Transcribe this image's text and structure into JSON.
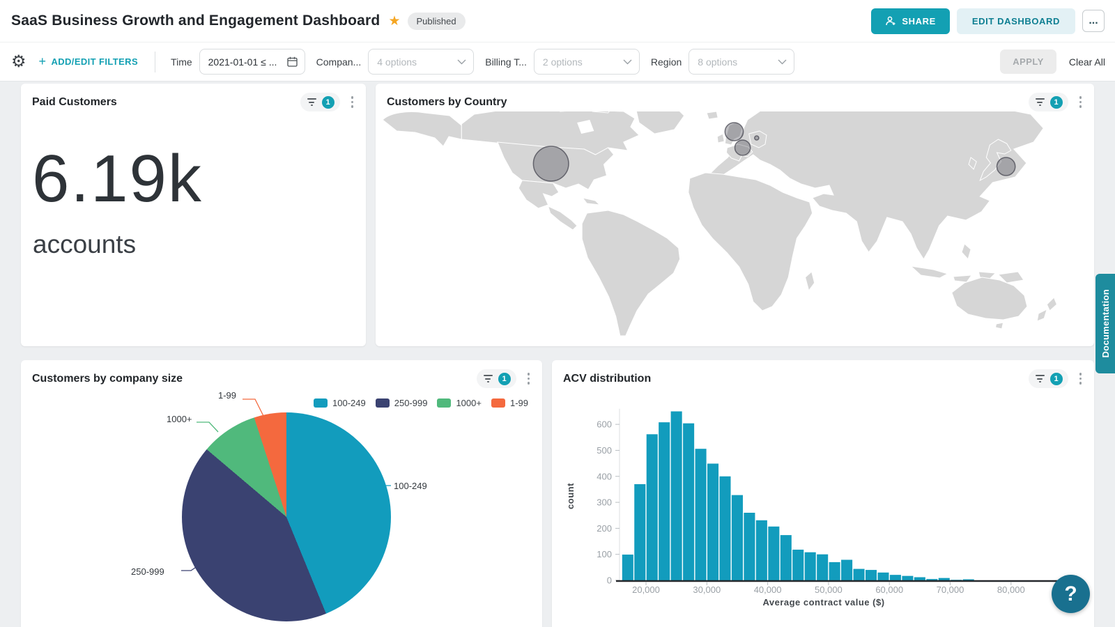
{
  "header": {
    "title": "SaaS Business Growth and Engagement Dashboard",
    "published_badge": "Published",
    "share_label": "SHARE",
    "edit_label": "EDIT DASHBOARD",
    "more_label": "..."
  },
  "filter_bar": {
    "add_edit_label": "ADD/EDIT FILTERS",
    "filters": [
      {
        "label": "Time",
        "value": "2021-01-01 ≤ ..."
      },
      {
        "label": "Compan...",
        "value": "4 options"
      },
      {
        "label": "Billing T...",
        "value": "2 options"
      },
      {
        "label": "Region",
        "value": "8 options"
      }
    ],
    "apply_label": "APPLY",
    "clear_all_label": "Clear All"
  },
  "widgets": {
    "paid_customers": {
      "title": "Paid Customers",
      "filter_count": "1",
      "value": "6.19k",
      "unit": "accounts"
    },
    "customers_by_country": {
      "title": "Customers by Country",
      "filter_count": "1"
    },
    "company_size": {
      "title": "Customers by company size",
      "filter_count": "1"
    },
    "acv": {
      "title": "ACV distribution",
      "filter_count": "1"
    }
  },
  "side": {
    "documentation_label": "Documentation",
    "help_label": "?"
  },
  "chart_data": [
    {
      "type": "indicator",
      "title": "Paid Customers",
      "value": 6190,
      "display": "6.19k",
      "unit": "accounts"
    },
    {
      "type": "map-choropleth",
      "title": "Customers by Country",
      "default_color": "#d6d6d6",
      "highlighted_countries": [
        {
          "slug": "canada",
          "name": "Canada",
          "color": "#0f9cbd",
          "bubble": false
        },
        {
          "slug": "united-states",
          "name": "United States",
          "color": "#a55ab4",
          "bubble": true
        },
        {
          "slug": "mexico",
          "name": "Mexico",
          "color": "#55565a",
          "bubble": false
        },
        {
          "slug": "united-kingdom",
          "name": "United Kingdom",
          "color": "#cfa23d",
          "bubble": true
        },
        {
          "slug": "france",
          "name": "France",
          "color": "#2c3a66",
          "bubble": true
        },
        {
          "slug": "germany",
          "name": "Germany",
          "color": "#4cbd7d",
          "bubble": true
        },
        {
          "slug": "japan",
          "name": "Japan",
          "color": "#f15b26",
          "bubble": true
        }
      ]
    },
    {
      "type": "pie",
      "title": "Customers by company size",
      "categories": [
        "100-249",
        "250-999",
        "1000+",
        "1-99"
      ],
      "values_pct": [
        43.8,
        42.4,
        8.8,
        5.0
      ],
      "colors": [
        "#129cbd",
        "#3a4271",
        "#50b97c",
        "#f4693e"
      ],
      "legend_position": "top-right"
    },
    {
      "type": "bar",
      "subtype": "histogram",
      "title": "ACV distribution",
      "xlabel": "Average contract value ($)",
      "ylabel": "count",
      "bar_color": "#129cbd",
      "bin_start": 16000,
      "bin_width": 2000,
      "counts": [
        99,
        370,
        562,
        608,
        650,
        604,
        506,
        449,
        400,
        328,
        260,
        231,
        207,
        174,
        118,
        108,
        100,
        70,
        79,
        44,
        40,
        30,
        21,
        17,
        12,
        5,
        9,
        2,
        4
      ],
      "x_ticks": [
        20000,
        30000,
        40000,
        50000,
        60000,
        70000,
        80000,
        90000
      ],
      "x_tick_labels": [
        "20,000",
        "30,000",
        "40,000",
        "50,000",
        "60,000",
        "70,000",
        "80,000",
        "90,000"
      ],
      "y_ticks": [
        0,
        100,
        200,
        300,
        400,
        500,
        600
      ],
      "xlim": [
        15500,
        90500
      ],
      "ylim": [
        0,
        680
      ],
      "grid": false
    }
  ]
}
